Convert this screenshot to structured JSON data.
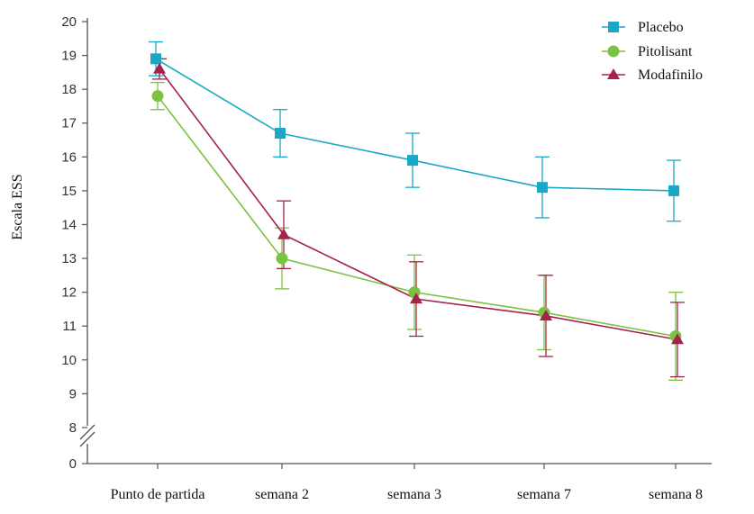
{
  "colors": {
    "placebo": "#1ba7c6",
    "pitolisant": "#7cc242",
    "modafinilo": "#a6224a",
    "axis": "#555555"
  },
  "chart_data": {
    "type": "line",
    "title": "",
    "xlabel": "",
    "ylabel": "Escala ESS",
    "categories": [
      "Punto de partida",
      "semana 2",
      "semana 3",
      "semana 7",
      "semana 8"
    ],
    "yticks": [
      0,
      8,
      9,
      10,
      11,
      12,
      13,
      14,
      15,
      16,
      17,
      18,
      19,
      20
    ],
    "ylim": [
      8,
      20
    ],
    "axis_break": true,
    "legend_position": "top-right",
    "series": [
      {
        "name": "Placebo",
        "marker": "square",
        "values": [
          18.9,
          16.7,
          15.9,
          15.1,
          15.0
        ],
        "error": [
          0.5,
          0.7,
          0.8,
          0.9,
          0.9
        ]
      },
      {
        "name": "Pitolisant",
        "marker": "circle",
        "values": [
          17.8,
          13.0,
          12.0,
          11.4,
          10.7
        ],
        "error": [
          0.4,
          0.9,
          1.1,
          1.1,
          1.3
        ]
      },
      {
        "name": "Modafinilo",
        "marker": "triangle",
        "values": [
          18.6,
          13.7,
          11.8,
          11.3,
          10.6
        ],
        "error": [
          0.3,
          1.0,
          1.1,
          1.2,
          1.1
        ]
      }
    ]
  }
}
